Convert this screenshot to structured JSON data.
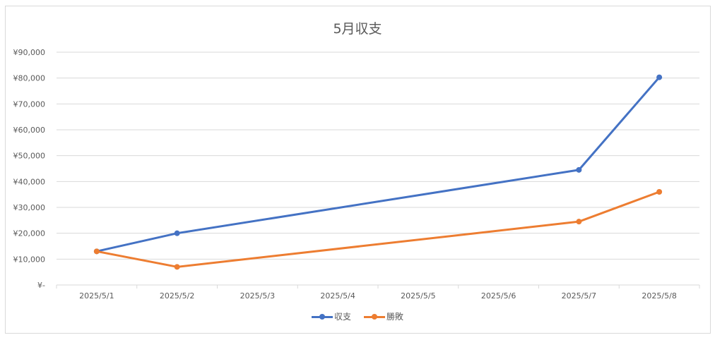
{
  "chart_data": {
    "type": "line",
    "title": "5月収支",
    "categories": [
      "2025/5/1",
      "2025/5/2",
      "2025/5/3",
      "2025/5/4",
      "2025/5/5",
      "2025/5/6",
      "2025/5/7",
      "2025/5/8"
    ],
    "y_ticks": [
      "¥-",
      "¥10,000",
      "¥20,000",
      "¥30,000",
      "¥40,000",
      "¥50,000",
      "¥60,000",
      "¥70,000",
      "¥80,000",
      "¥90,000"
    ],
    "ylim": [
      0,
      90000
    ],
    "grid": true,
    "legend_position": "bottom",
    "series": [
      {
        "name": "収支",
        "color": "#4472C4",
        "points": [
          [
            0,
            13000
          ],
          [
            1,
            20000
          ],
          [
            6,
            44500
          ],
          [
            7,
            80300
          ]
        ]
      },
      {
        "name": "勝敗",
        "color": "#ED7D31",
        "points": [
          [
            0,
            13000
          ],
          [
            1,
            7000
          ],
          [
            6,
            24500
          ],
          [
            7,
            36000
          ]
        ]
      }
    ]
  }
}
